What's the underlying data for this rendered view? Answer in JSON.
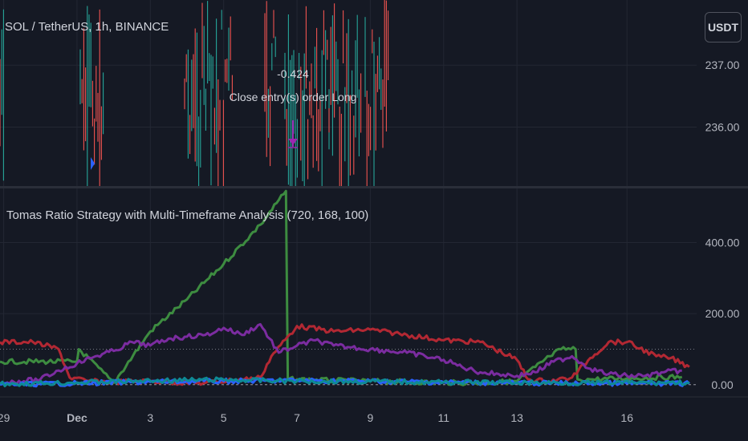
{
  "header": {
    "symbol_title": "SOL / TetherUS, 1h, BINANCE",
    "currency_button": "USDT"
  },
  "annotation": {
    "value": "-0.424",
    "label": "Close entry(s) order Long"
  },
  "indicator": {
    "title": "Tomas Ratio Strategy with Multi-Timeframe Analysis (720, 168, 100)"
  },
  "colors": {
    "background": "#151924",
    "grid": "#232733",
    "candle_up": "#26a69a",
    "candle_down": "#ef5350",
    "series_green": "#3d8c40",
    "series_red": "#b22833",
    "series_purple": "#7b2ca0",
    "series_blue": "#2962ff",
    "series_teal": "#0e8a96",
    "strategy_marker": "#9c27b0",
    "entry_marker": "#2962ff"
  },
  "chart_data": [
    {
      "type": "bar",
      "title": "SOL / TetherUS, 1h, BINANCE",
      "y_ticks": [
        "237.00",
        "236.00"
      ],
      "y_tick_values": [
        237,
        236
      ],
      "ylim": [
        235.05,
        238.05
      ],
      "grid": true
    },
    {
      "type": "line",
      "title": "Tomas Ratio Strategy with Multi-Timeframe Analysis (720, 168, 100)",
      "x_ticks": [
        "29",
        "Dec",
        "3",
        "5",
        "7",
        "9",
        "11",
        "13",
        "16"
      ],
      "x_tick_values": [
        -2,
        0,
        2,
        4,
        6,
        8,
        10,
        12,
        15
      ],
      "y_ticks": [
        "400.00",
        "200.00",
        "0.00"
      ],
      "y_tick_values": [
        400,
        200,
        0
      ],
      "ylim": [
        -5,
        550
      ],
      "xlim": [
        -2.1,
        16.9
      ],
      "reference_lines": [
        100,
        0
      ],
      "grid": true,
      "series": [
        {
          "color": "#3d8c40",
          "x": [
            -2.1,
            0,
            0.05,
            1,
            2,
            3,
            4,
            5,
            5.7,
            5.75,
            6,
            7,
            8,
            9,
            10,
            11,
            12,
            12.5,
            12.9,
            13.2,
            13.6,
            13.65,
            14,
            15,
            16.5
          ],
          "y": [
            65,
            65,
            100,
            5,
            150,
            240,
            340,
            450,
            545,
            15,
            15,
            12,
            10,
            8,
            6,
            5,
            10,
            50,
            80,
            100,
            100,
            15,
            15,
            18,
            22
          ]
        },
        {
          "color": "#b22833",
          "x": [
            -2.1,
            -1.2,
            -0.5,
            -0.2,
            0.3,
            1,
            2,
            3,
            3.5,
            4.5,
            5,
            5.3,
            6,
            7,
            8,
            9,
            10,
            11,
            12,
            12.3,
            12.8,
            13.5,
            14,
            14.5,
            15,
            15.8,
            16.2,
            16.7
          ],
          "y": [
            120,
            120,
            100,
            20,
            10,
            8,
            10,
            5,
            5,
            15,
            20,
            80,
            165,
            150,
            155,
            140,
            125,
            120,
            70,
            15,
            10,
            20,
            75,
            120,
            120,
            80,
            75,
            50
          ]
        },
        {
          "color": "#7b2ca0",
          "x": [
            -2.1,
            -1,
            -0.5,
            0,
            0.5,
            1,
            1.5,
            2,
            2.5,
            3,
            3.5,
            3.8,
            4,
            4.5,
            5,
            5.5,
            6,
            6.5,
            7,
            7.5,
            8,
            8.5,
            9,
            9.5,
            10,
            10.5,
            11,
            11.5,
            12,
            12.5,
            13,
            13.5,
            14,
            14.5,
            15,
            15.5,
            16,
            16.5
          ],
          "y": [
            5,
            15,
            40,
            60,
            80,
            95,
            120,
            110,
            130,
            135,
            140,
            150,
            160,
            140,
            170,
            90,
            110,
            125,
            110,
            105,
            100,
            95,
            90,
            80,
            70,
            50,
            35,
            30,
            25,
            35,
            65,
            80,
            45,
            30,
            25,
            25,
            35,
            40
          ]
        },
        {
          "color": "#2962ff",
          "x": [
            -2.1,
            0,
            2,
            4,
            6,
            8,
            10,
            12,
            14,
            16,
            16.7
          ],
          "y": [
            0,
            4,
            8,
            10,
            12,
            10,
            7,
            5,
            4,
            3,
            3
          ]
        },
        {
          "color": "#0e8a96",
          "x": [
            -2.1,
            0,
            2,
            4,
            6,
            8,
            10,
            12,
            14,
            16,
            16.7
          ],
          "y": [
            2,
            6,
            11,
            14,
            10,
            9,
            7,
            6,
            5,
            6,
            6
          ]
        }
      ]
    }
  ]
}
